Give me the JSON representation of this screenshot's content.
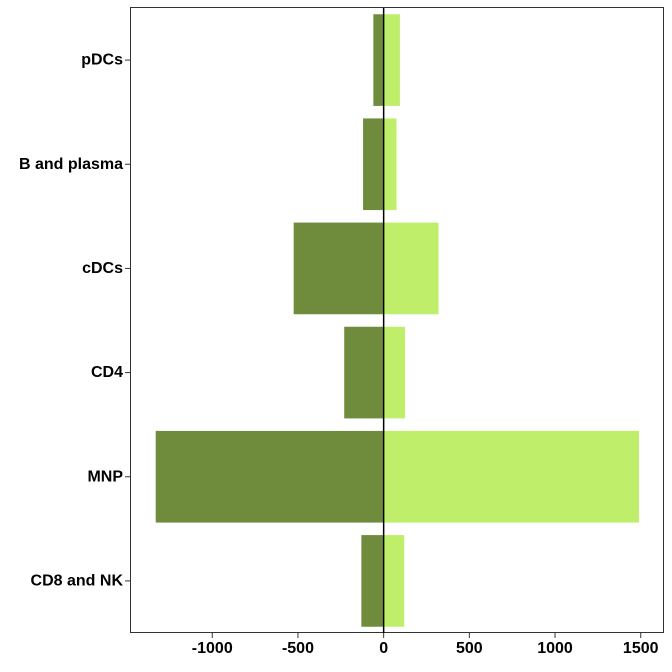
{
  "chart_data": {
    "type": "bar",
    "orientation": "horizontal",
    "stacked": "diverging",
    "categories": [
      "pDCs",
      "B and plasma",
      "cDCs",
      "CD4",
      "MNP",
      "CD8 and NK"
    ],
    "series": [
      {
        "values": [
          -60,
          -120,
          -525,
          -230,
          -1330,
          -130
        ],
        "color": "#6f8c3d"
      },
      {
        "values": [
          95,
          75,
          320,
          125,
          1490,
          120
        ],
        "color": "#bfee6b"
      }
    ],
    "xlim": [
      -1480,
      1630
    ],
    "xticks": [
      -1000,
      -500,
      0,
      500,
      1000,
      1500
    ],
    "xtick_labels": [
      "-1000",
      "-500",
      "0",
      "500",
      "1000",
      "1500"
    ],
    "grid": false,
    "zero_line": true
  }
}
